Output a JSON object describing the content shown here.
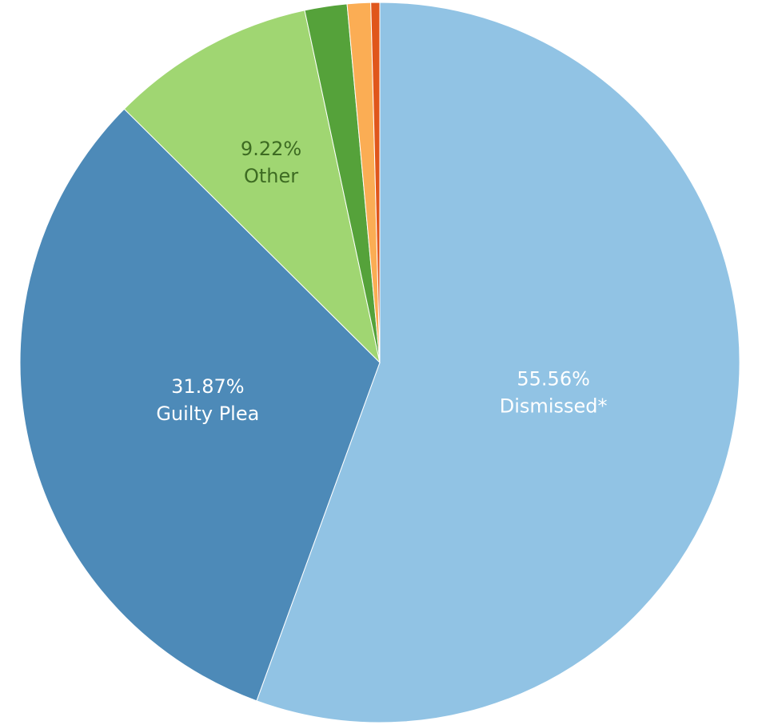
{
  "chart_data": {
    "type": "pie",
    "categories": [
      "Dismissed*",
      "Guilty Plea",
      "Other",
      null,
      null,
      null
    ],
    "values": [
      55.56,
      31.87,
      9.22,
      1.9,
      1.05,
      0.4
    ],
    "value_labels": [
      "55.56%",
      "31.87%",
      "9.22%",
      null,
      null,
      null
    ],
    "colors": [
      "#91c3e4",
      "#4d8ab8",
      "#a0d672",
      "#55a23a",
      "#fbad54",
      "#e0561b"
    ]
  }
}
